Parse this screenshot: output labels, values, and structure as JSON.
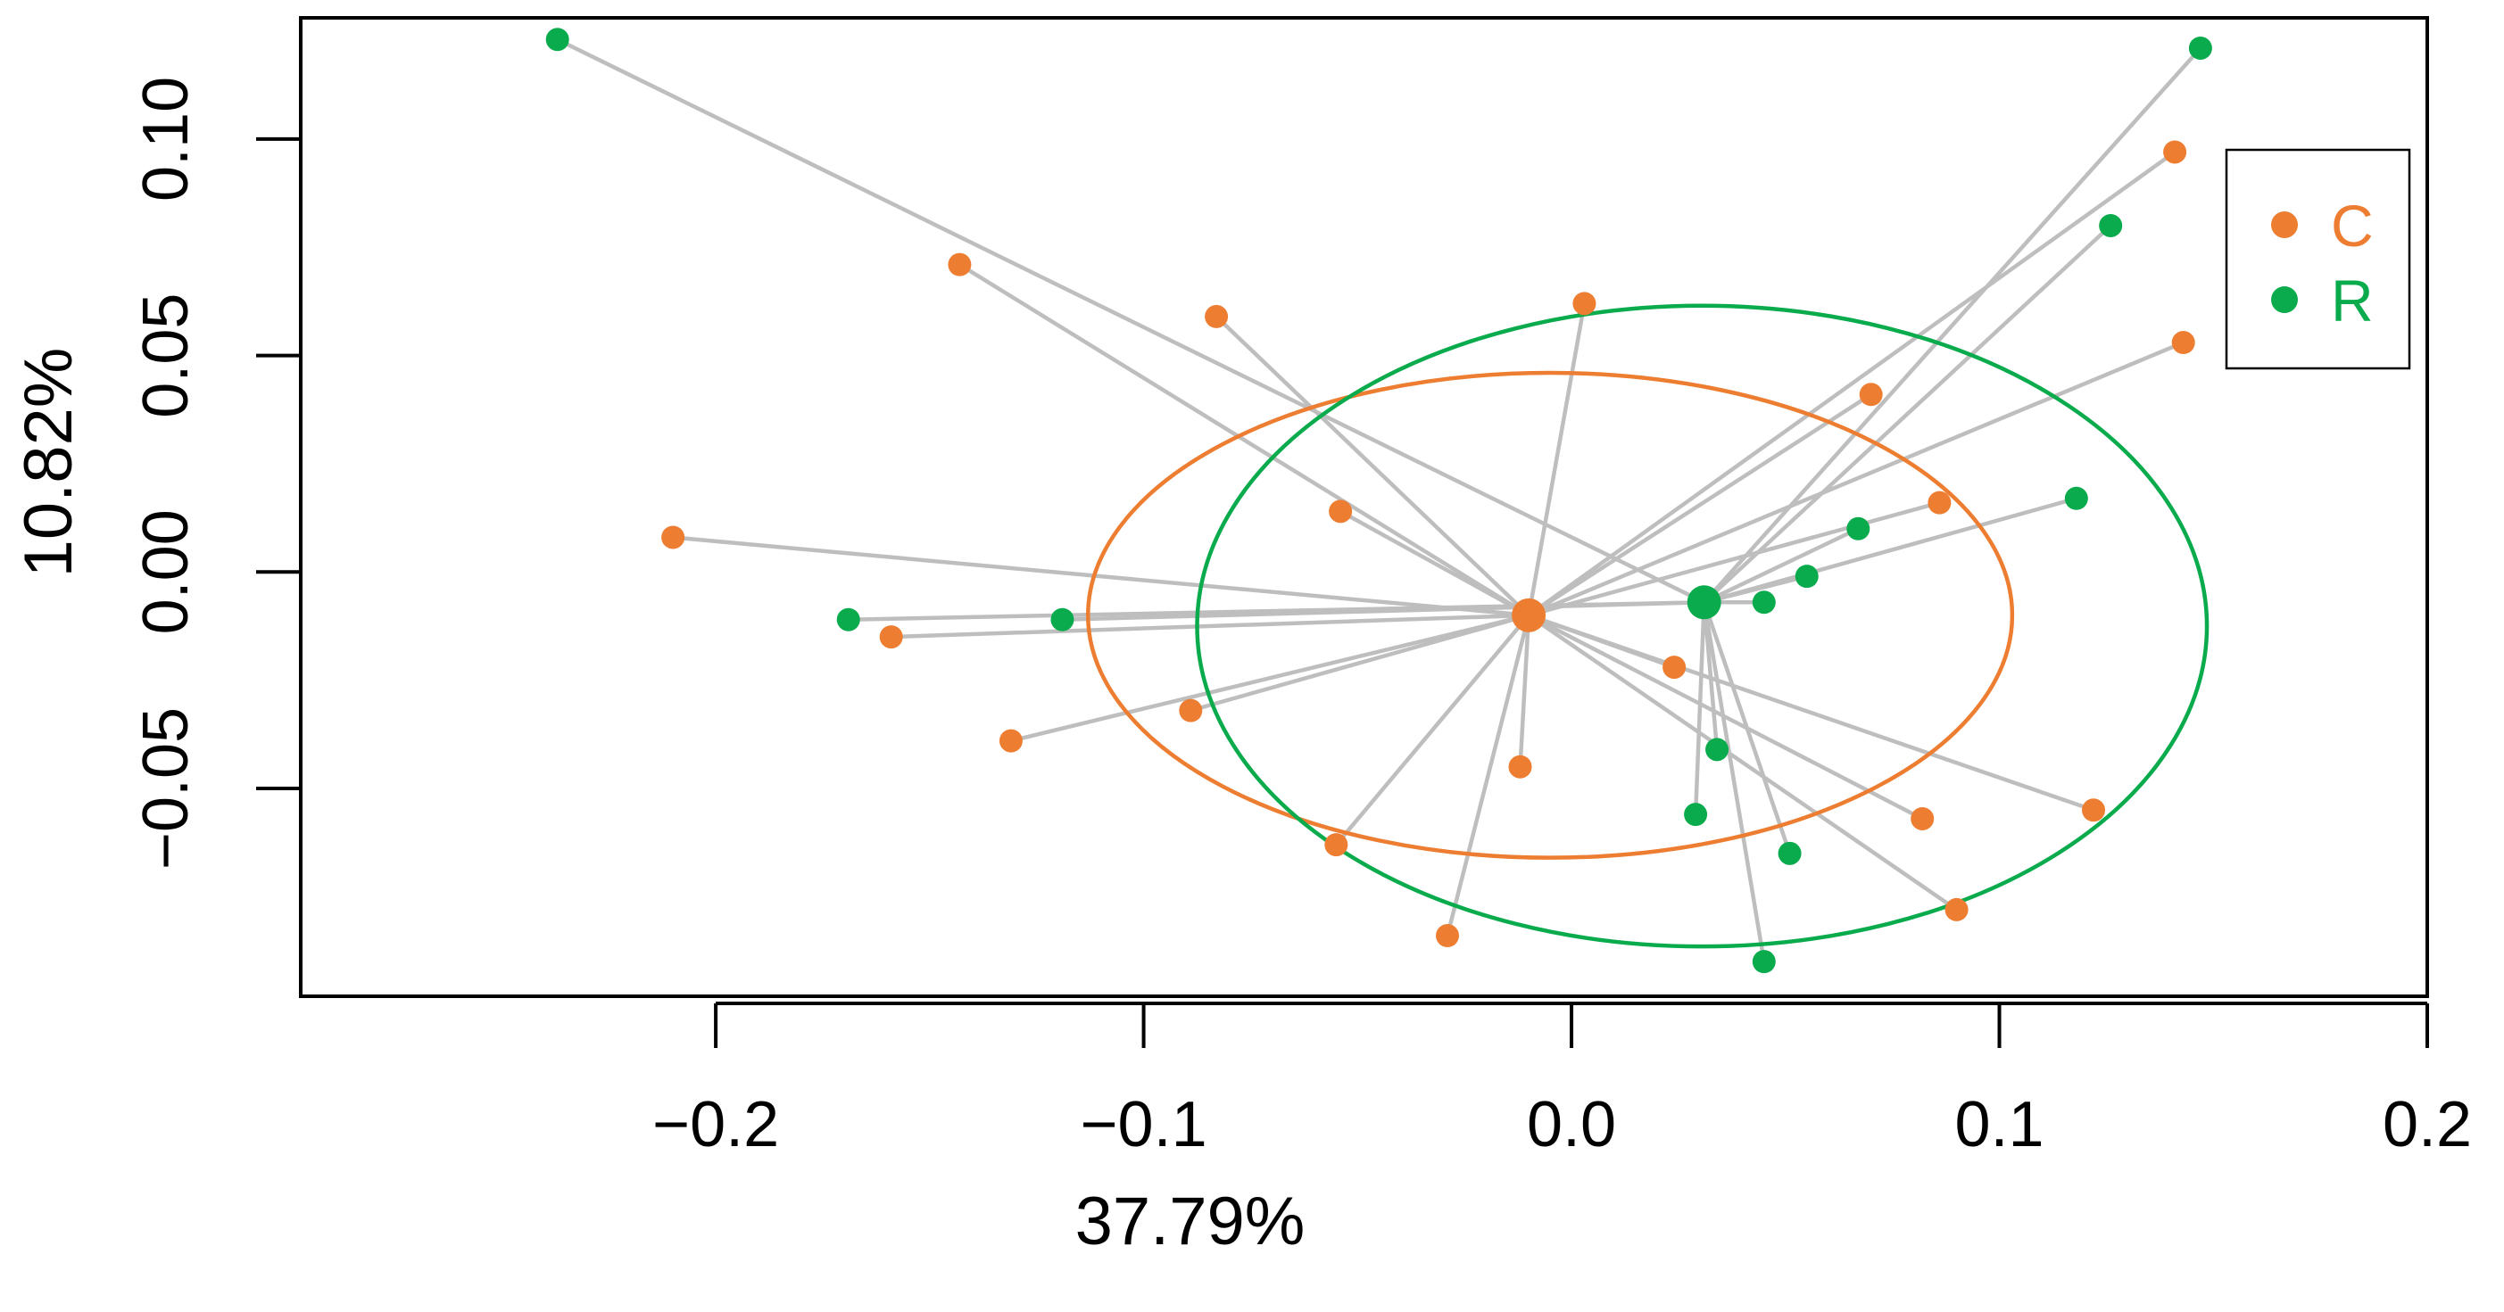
{
  "chart_data": {
    "type": "scatter",
    "subtype": "PCoA betadisper ordination",
    "xlabel": "37.79%",
    "ylabel": "10.82%",
    "xlim": [
      -0.297,
      0.2
    ],
    "ylim": [
      -0.098,
      0.128
    ],
    "x_ticks": [
      -0.2,
      -0.1,
      0.0,
      0.1,
      0.2
    ],
    "x_tick_labels": [
      "−0.2",
      "−0.1",
      "0.0",
      "0.1",
      "0.2"
    ],
    "y_ticks": [
      -0.05,
      0.0,
      0.05,
      0.1
    ],
    "y_tick_labels": [
      "−0.05",
      "0.00",
      "0.05",
      "0.10"
    ],
    "grid": false,
    "legend_position": "top-right",
    "groups": [
      {
        "name": "C",
        "color": "#ED7D31",
        "centroid": [
          -0.01,
          -0.01
        ],
        "ellipse": {
          "center": [
            -0.005,
            -0.01
          ],
          "radii": [
            0.108,
            0.056
          ]
        },
        "points": [
          [
            -0.143,
            0.071
          ],
          [
            -0.083,
            0.059
          ],
          [
            0.003,
            0.062
          ],
          [
            -0.054,
            0.014
          ],
          [
            -0.21,
            0.008
          ],
          [
            -0.159,
            -0.015
          ],
          [
            -0.131,
            -0.039
          ],
          [
            -0.089,
            -0.032
          ],
          [
            -0.055,
            -0.063
          ],
          [
            -0.029,
            -0.084
          ],
          [
            -0.012,
            -0.045
          ],
          [
            0.024,
            -0.022
          ],
          [
            0.07,
            0.041
          ],
          [
            0.086,
            0.016
          ],
          [
            0.082,
            -0.057
          ],
          [
            0.09,
            -0.078
          ],
          [
            0.122,
            -0.055
          ],
          [
            0.141,
            0.097
          ],
          [
            0.143,
            0.053
          ]
        ]
      },
      {
        "name": "R",
        "color": "#0AAB4C",
        "centroid": [
          0.031,
          -0.007
        ],
        "ellipse": {
          "center": [
            0.0305,
            -0.0125
          ],
          "radii": [
            0.118,
            0.074
          ]
        },
        "points": [
          [
            -0.237,
            0.123
          ],
          [
            -0.169,
            -0.011
          ],
          [
            -0.119,
            -0.011
          ],
          [
            0.029,
            -0.056
          ],
          [
            0.034,
            -0.041
          ],
          [
            0.045,
            -0.007
          ],
          [
            0.045,
            -0.09
          ],
          [
            0.051,
            -0.065
          ],
          [
            0.055,
            -0.001
          ],
          [
            0.067,
            0.01
          ],
          [
            0.118,
            0.017
          ],
          [
            0.126,
            0.08
          ],
          [
            0.147,
            0.121
          ]
        ]
      }
    ],
    "spoke_color": "#BEBEBE"
  }
}
